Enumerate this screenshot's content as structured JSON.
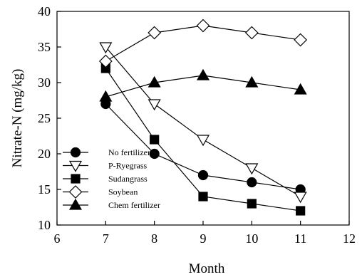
{
  "chart_data": {
    "type": "line",
    "xlabel": "Month",
    "ylabel": "Nitrate-N (mg/kg)",
    "xlim": [
      6,
      12
    ],
    "ylim": [
      10,
      40
    ],
    "xticks": [
      6,
      7,
      8,
      9,
      10,
      11,
      12
    ],
    "yticks": [
      10,
      15,
      20,
      25,
      30,
      35,
      40
    ],
    "grid": false,
    "legend_position": "bottom-left",
    "x": [
      7,
      8,
      9,
      10,
      11
    ],
    "series": [
      {
        "name": "No fertilizer",
        "marker": "circle",
        "fill": "#000000",
        "values": [
          27,
          20,
          17,
          16,
          15
        ]
      },
      {
        "name": "P-Ryegrass",
        "marker": "triangle-down",
        "fill": "#ffffff",
        "values": [
          35,
          27,
          22,
          18,
          14
        ]
      },
      {
        "name": "Sudangrass",
        "marker": "square",
        "fill": "#000000",
        "values": [
          32,
          22,
          14,
          13,
          12
        ]
      },
      {
        "name": "Soybean",
        "marker": "diamond",
        "fill": "#ffffff",
        "values": [
          33,
          37,
          38,
          37,
          36
        ]
      },
      {
        "name": "Chem fertilizer",
        "marker": "triangle-up",
        "fill": "#000000",
        "values": [
          28,
          30,
          31,
          30,
          29
        ]
      }
    ]
  }
}
